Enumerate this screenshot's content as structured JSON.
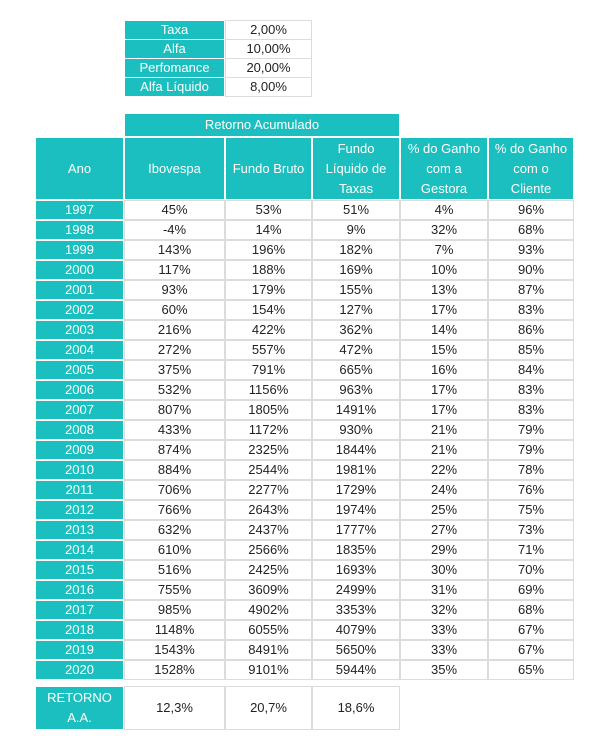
{
  "summary_table": {
    "rows": [
      [
        "Taxa",
        "2,00%"
      ],
      [
        "Alfa",
        "10,00%"
      ],
      [
        "Perfomance",
        "20,00%"
      ],
      [
        "Alfa Líquido",
        "8,00%"
      ]
    ]
  },
  "main_table": {
    "group_header": "Retorno Acumulado",
    "headers": [
      [
        "Ano"
      ],
      [
        "Ibovespa"
      ],
      [
        "Fundo Bruto"
      ],
      [
        "Fundo",
        "Líquido de",
        "Taxas"
      ],
      [
        "% do Ganho",
        "com a",
        "Gestora"
      ],
      [
        "% do Ganho",
        "com o",
        "Cliente"
      ]
    ],
    "rows": [
      [
        "1997",
        "45%",
        "53%",
        "51%",
        "4%",
        "96%"
      ],
      [
        "1998",
        "-4%",
        "14%",
        "9%",
        "32%",
        "68%"
      ],
      [
        "1999",
        "143%",
        "196%",
        "182%",
        "7%",
        "93%"
      ],
      [
        "2000",
        "117%",
        "188%",
        "169%",
        "10%",
        "90%"
      ],
      [
        "2001",
        "93%",
        "179%",
        "155%",
        "13%",
        "87%"
      ],
      [
        "2002",
        "60%",
        "154%",
        "127%",
        "17%",
        "83%"
      ],
      [
        "2003",
        "216%",
        "422%",
        "362%",
        "14%",
        "86%"
      ],
      [
        "2004",
        "272%",
        "557%",
        "472%",
        "15%",
        "85%"
      ],
      [
        "2005",
        "375%",
        "791%",
        "665%",
        "16%",
        "84%"
      ],
      [
        "2006",
        "532%",
        "1156%",
        "963%",
        "17%",
        "83%"
      ],
      [
        "2007",
        "807%",
        "1805%",
        "1491%",
        "17%",
        "83%"
      ],
      [
        "2008",
        "433%",
        "1172%",
        "930%",
        "21%",
        "79%"
      ],
      [
        "2009",
        "874%",
        "2325%",
        "1844%",
        "21%",
        "79%"
      ],
      [
        "2010",
        "884%",
        "2544%",
        "1981%",
        "22%",
        "78%"
      ],
      [
        "2011",
        "706%",
        "2277%",
        "1729%",
        "24%",
        "76%"
      ],
      [
        "2012",
        "766%",
        "2643%",
        "1974%",
        "25%",
        "75%"
      ],
      [
        "2013",
        "632%",
        "2437%",
        "1777%",
        "27%",
        "73%"
      ],
      [
        "2014",
        "610%",
        "2566%",
        "1835%",
        "29%",
        "71%"
      ],
      [
        "2015",
        "516%",
        "2425%",
        "1693%",
        "30%",
        "70%"
      ],
      [
        "2016",
        "755%",
        "3609%",
        "2499%",
        "31%",
        "69%"
      ],
      [
        "2017",
        "985%",
        "4902%",
        "3353%",
        "32%",
        "68%"
      ],
      [
        "2018",
        "1148%",
        "6055%",
        "4079%",
        "33%",
        "67%"
      ],
      [
        "2019",
        "1543%",
        "8491%",
        "5650%",
        "33%",
        "67%"
      ],
      [
        "2020",
        "1528%",
        "9101%",
        "5944%",
        "35%",
        "65%"
      ]
    ],
    "footer": {
      "label": [
        "RETORNO",
        "A.A."
      ],
      "values": [
        "12,3%",
        "20,7%",
        "18,6%"
      ]
    }
  }
}
